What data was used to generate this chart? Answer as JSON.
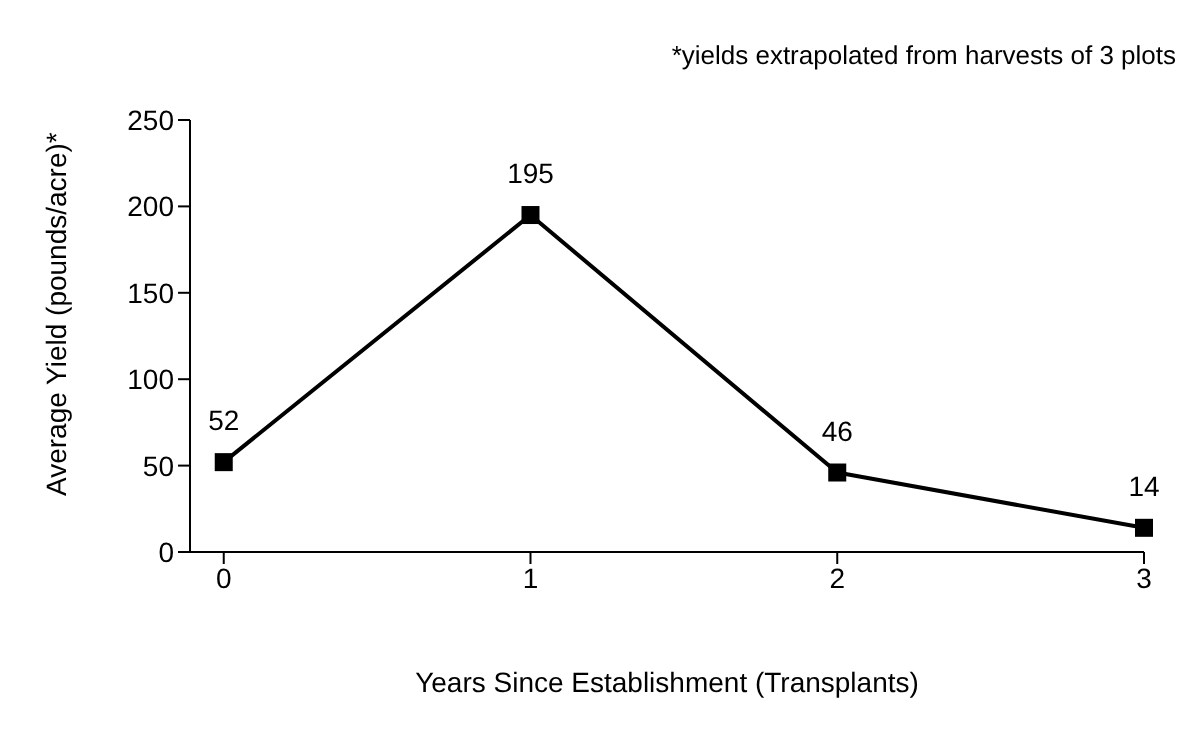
{
  "chart_data": {
    "type": "line",
    "xlabel": "Years Since Establishment (Transplants)",
    "ylabel": "Average Yield (pounds/acre)*",
    "annotations": [
      "*yields extrapolated from harvests of 3 plots"
    ],
    "x": [
      0,
      1,
      2,
      3
    ],
    "series": [
      {
        "color": "#000000",
        "values": [
          52,
          195,
          46,
          14
        ]
      }
    ],
    "xlim": [
      -0.11,
      3
    ],
    "xticks": [
      0,
      1,
      2,
      3
    ],
    "ylim": [
      0,
      250
    ],
    "yticks": [
      0,
      50,
      100,
      150,
      200,
      250
    ],
    "grid": false,
    "legend": false,
    "marker": "square",
    "line_style": "solid",
    "data_labels": true
  }
}
